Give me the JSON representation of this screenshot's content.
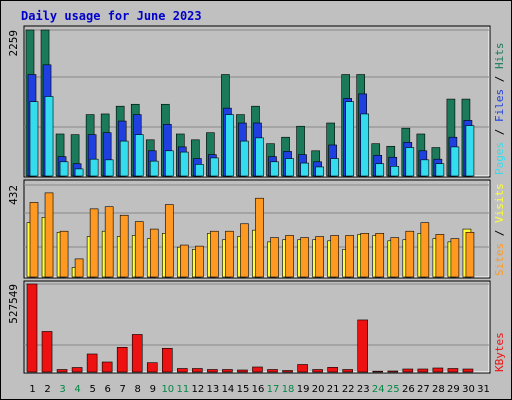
{
  "title": "Daily usage for June 2023",
  "colors": {
    "hits": "#1a7a5a",
    "files": "#1f3fe0",
    "pages": "#33ddee",
    "visits": "#ffff33",
    "sites": "#ff9922",
    "kbytes": "#ee1111",
    "weekday_label": "#000000",
    "weekend_label": "#008844",
    "plot_bg": "#c0c0c0"
  },
  "chart_data": [
    {
      "type": "bar",
      "name": "hits-files-pages",
      "ymax": 2259,
      "ymax_label": "2259",
      "right_label": {
        "pages": "Pages",
        "sep1": " / ",
        "files": "Files",
        "sep2": " / ",
        "hits": "Hits"
      },
      "categories": [
        "1",
        "2",
        "3",
        "4",
        "5",
        "6",
        "7",
        "8",
        "9",
        "10",
        "11",
        "12",
        "13",
        "14",
        "15",
        "16",
        "17",
        "18",
        "19",
        "20",
        "21",
        "22",
        "23",
        "24",
        "25",
        "26",
        "27",
        "28",
        "29",
        "30",
        "31"
      ],
      "series": [
        {
          "key": "hits",
          "values": [
            2259,
            2259,
            650,
            640,
            950,
            960,
            1080,
            1110,
            560,
            1110,
            650,
            560,
            670,
            1570,
            950,
            1080,
            500,
            600,
            770,
            390,
            820,
            1570,
            1570,
            500,
            460,
            740,
            650,
            440,
            1190,
            1190,
            0
          ]
        },
        {
          "key": "files",
          "values": [
            1570,
            1720,
            300,
            190,
            640,
            670,
            850,
            950,
            390,
            800,
            450,
            270,
            330,
            1050,
            820,
            820,
            300,
            380,
            330,
            220,
            480,
            1200,
            1270,
            320,
            290,
            520,
            390,
            260,
            600,
            860,
            0
          ]
        },
        {
          "key": "pages",
          "values": [
            1150,
            1230,
            220,
            110,
            260,
            250,
            540,
            640,
            230,
            390,
            370,
            180,
            280,
            950,
            540,
            590,
            220,
            270,
            200,
            140,
            270,
            1150,
            960,
            190,
            150,
            440,
            250,
            190,
            450,
            780,
            0
          ]
        }
      ]
    },
    {
      "type": "bar",
      "name": "visits-sites",
      "ymax": 432,
      "ymax_label": "432",
      "right_label": {
        "sites": "Sites",
        "sep": " / ",
        "visits": "Visits"
      },
      "categories": [
        "1",
        "2",
        "3",
        "4",
        "5",
        "6",
        "7",
        "8",
        "9",
        "10",
        "11",
        "12",
        "13",
        "14",
        "15",
        "16",
        "17",
        "18",
        "19",
        "20",
        "21",
        "22",
        "23",
        "24",
        "25",
        "26",
        "27",
        "28",
        "29",
        "30",
        "31"
      ],
      "series": [
        {
          "key": "visits",
          "values": [
            255,
            280,
            210,
            45,
            190,
            215,
            190,
            195,
            180,
            205,
            140,
            130,
            205,
            175,
            190,
            220,
            165,
            175,
            175,
            175,
            170,
            130,
            200,
            195,
            170,
            175,
            205,
            180,
            165,
            225,
            0
          ]
        },
        {
          "key": "sites",
          "values": [
            350,
            395,
            215,
            85,
            320,
            330,
            290,
            260,
            225,
            340,
            150,
            145,
            215,
            215,
            250,
            370,
            185,
            195,
            185,
            190,
            195,
            195,
            205,
            205,
            185,
            215,
            255,
            200,
            180,
            210,
            0
          ]
        }
      ]
    },
    {
      "type": "bar",
      "name": "kbytes",
      "ymax": 527549,
      "ymax_label": "527549",
      "right_label": {
        "kbytes": "KBytes"
      },
      "categories": [
        "1",
        "2",
        "3",
        "4",
        "5",
        "6",
        "7",
        "8",
        "9",
        "10",
        "11",
        "12",
        "13",
        "14",
        "15",
        "16",
        "17",
        "18",
        "19",
        "20",
        "21",
        "22",
        "23",
        "24",
        "25",
        "26",
        "27",
        "28",
        "29",
        "30",
        "31"
      ],
      "series": [
        {
          "key": "kbytes",
          "values": [
            527549,
            243000,
            15000,
            27000,
            108000,
            60000,
            148000,
            225000,
            56000,
            142000,
            21000,
            21000,
            15000,
            15000,
            12000,
            30000,
            15000,
            9000,
            45000,
            15000,
            28000,
            15000,
            312000,
            5000,
            6000,
            18000,
            18000,
            24000,
            21000,
            18000,
            0
          ]
        }
      ]
    }
  ],
  "x_axis": {
    "labels": [
      "1",
      "2",
      "3",
      "4",
      "5",
      "6",
      "7",
      "8",
      "9",
      "10",
      "11",
      "12",
      "13",
      "14",
      "15",
      "16",
      "17",
      "18",
      "19",
      "20",
      "21",
      "22",
      "23",
      "24",
      "25",
      "26",
      "27",
      "28",
      "29",
      "30",
      "31"
    ],
    "weekend": [
      false,
      false,
      true,
      true,
      false,
      false,
      false,
      false,
      false,
      true,
      true,
      false,
      false,
      false,
      false,
      false,
      true,
      true,
      false,
      false,
      false,
      false,
      false,
      true,
      true,
      false,
      false,
      false,
      false,
      false,
      false
    ]
  }
}
